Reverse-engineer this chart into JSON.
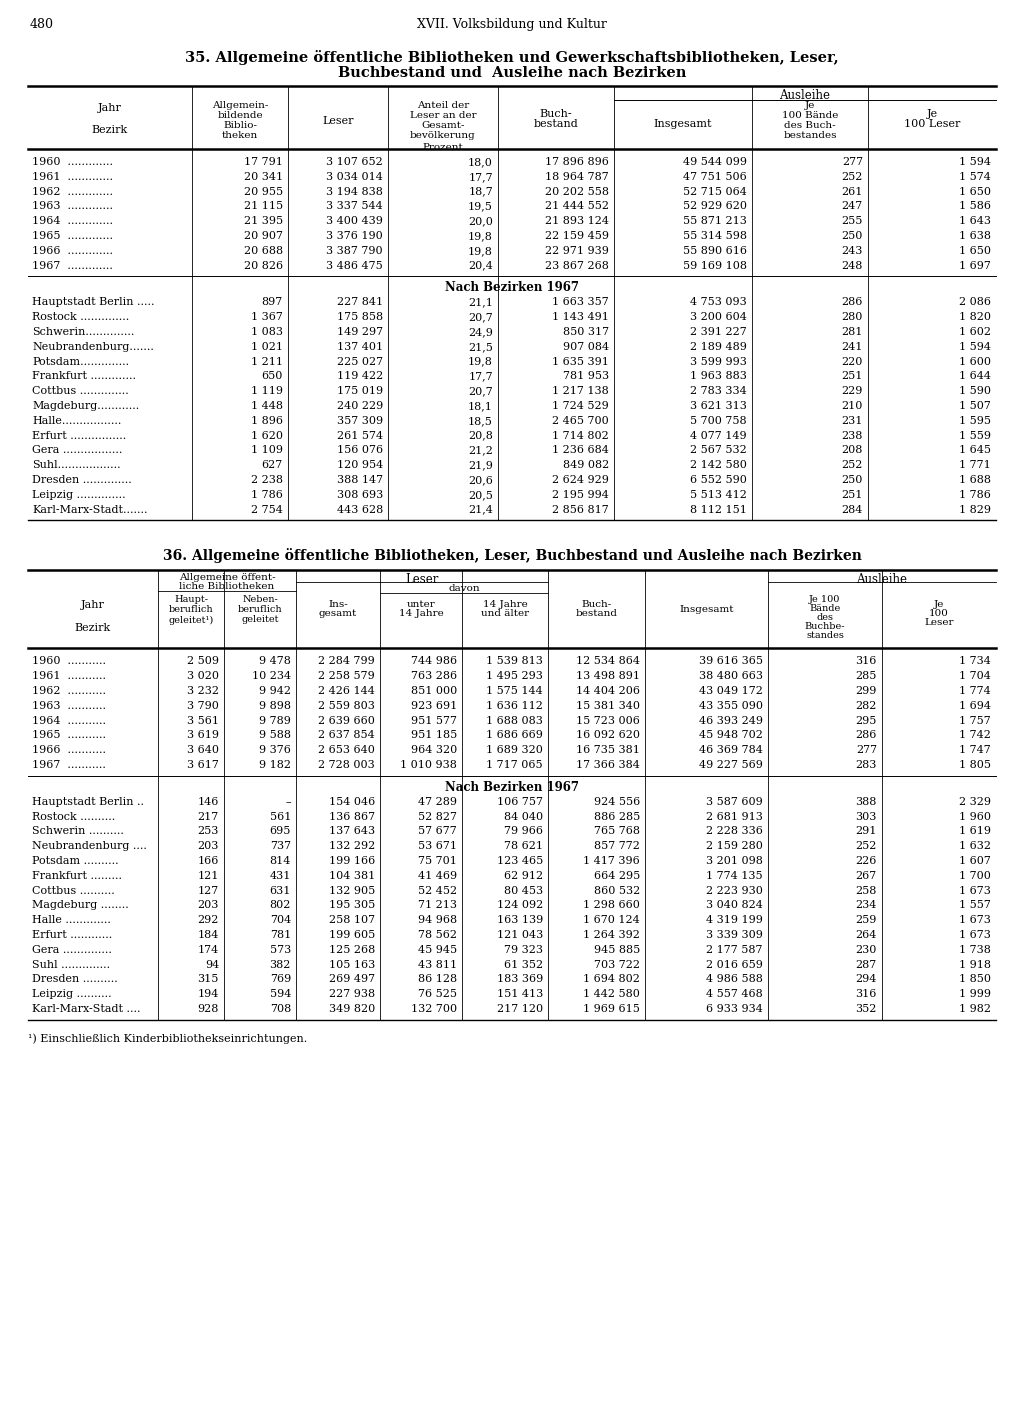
{
  "page_num": "480",
  "header": "XVII. Volksbildung und Kultur",
  "title35_line1": "35. Allgemeine öffentliche Bibliotheken und Gewerkschaftsbibliotheken, Leser,",
  "title35_line2": "Buchbestand und  Ausleihe nach Bezirken",
  "title36": "36. Allgemeine öffentliche Bibliotheken, Leser, Buchbestand und Ausleihe nach Bezirken",
  "footnote": "¹) Einschließlich Kinderbibliothekseinrichtungen.",
  "table35_years": [
    [
      "1960  .............",
      "17 791",
      "3 107 652",
      "18,0",
      "17 896 896",
      "49 544 099",
      "277",
      "1 594"
    ],
    [
      "1961  .............",
      "20 341",
      "3 034 014",
      "17,7",
      "18 964 787",
      "47 751 506",
      "252",
      "1 574"
    ],
    [
      "1962  .............",
      "20 955",
      "3 194 838",
      "18,7",
      "20 202 558",
      "52 715 064",
      "261",
      "1 650"
    ],
    [
      "1963  .............",
      "21 115",
      "3 337 544",
      "19,5",
      "21 444 552",
      "52 929 620",
      "247",
      "1 586"
    ],
    [
      "1964  .............",
      "21 395",
      "3 400 439",
      "20,0",
      "21 893 124",
      "55 871 213",
      "255",
      "1 643"
    ],
    [
      "1965  .............",
      "20 907",
      "3 376 190",
      "19,8",
      "22 159 459",
      "55 314 598",
      "250",
      "1 638"
    ],
    [
      "1966  .............",
      "20 688",
      "3 387 790",
      "19,8",
      "22 971 939",
      "55 890 616",
      "243",
      "1 650"
    ],
    [
      "1967  .............",
      "20 826",
      "3 486 475",
      "20,4",
      "23 867 268",
      "59 169 108",
      "248",
      "1 697"
    ]
  ],
  "table35_bezirke_header": "Nach Bezirken 1967",
  "table35_bezirke": [
    [
      "Hauptstadt Berlin .....",
      "897",
      "227 841",
      "21,1",
      "1 663 357",
      "4 753 093",
      "286",
      "2 086"
    ],
    [
      "Rostock ..............",
      "1 367",
      "175 858",
      "20,7",
      "1 143 491",
      "3 200 604",
      "280",
      "1 820"
    ],
    [
      "Schwerin..............",
      "1 083",
      "149 297",
      "24,9",
      "850 317",
      "2 391 227",
      "281",
      "1 602"
    ],
    [
      "Neubrandenburg.......",
      "1 021",
      "137 401",
      "21,5",
      "907 084",
      "2 189 489",
      "241",
      "1 594"
    ],
    [
      "Potsdam..............",
      "1 211",
      "225 027",
      "19,8",
      "1 635 391",
      "3 599 993",
      "220",
      "1 600"
    ],
    [
      "Frankfurt .............",
      "650",
      "119 422",
      "17,7",
      "781 953",
      "1 963 883",
      "251",
      "1 644"
    ],
    [
      "Cottbus ..............",
      "1 119",
      "175 019",
      "20,7",
      "1 217 138",
      "2 783 334",
      "229",
      "1 590"
    ],
    [
      "Magdeburg............",
      "1 448",
      "240 229",
      "18,1",
      "1 724 529",
      "3 621 313",
      "210",
      "1 507"
    ],
    [
      "Halle.................",
      "1 896",
      "357 309",
      "18,5",
      "2 465 700",
      "5 700 758",
      "231",
      "1 595"
    ],
    [
      "Erfurt ................",
      "1 620",
      "261 574",
      "20,8",
      "1 714 802",
      "4 077 149",
      "238",
      "1 559"
    ],
    [
      "Gera .................",
      "1 109",
      "156 076",
      "21,2",
      "1 236 684",
      "2 567 532",
      "208",
      "1 645"
    ],
    [
      "Suhl..................",
      "627",
      "120 954",
      "21,9",
      "849 082",
      "2 142 580",
      "252",
      "1 771"
    ],
    [
      "Dresden ..............",
      "2 238",
      "388 147",
      "20,6",
      "2 624 929",
      "6 552 590",
      "250",
      "1 688"
    ],
    [
      "Leipzig ..............",
      "1 786",
      "308 693",
      "20,5",
      "2 195 994",
      "5 513 412",
      "251",
      "1 786"
    ],
    [
      "Karl-Marx-Stadt.......",
      "2 754",
      "443 628",
      "21,4",
      "2 856 817",
      "8 112 151",
      "284",
      "1 829"
    ]
  ],
  "table36_years": [
    [
      "1960  ...........",
      "2 509",
      "9 478",
      "2 284 799",
      "744 986",
      "1 539 813",
      "12 534 864",
      "39 616 365",
      "316",
      "1 734"
    ],
    [
      "1961  ...........",
      "3 020",
      "10 234",
      "2 258 579",
      "763 286",
      "1 495 293",
      "13 498 891",
      "38 480 663",
      "285",
      "1 704"
    ],
    [
      "1962  ...........",
      "3 232",
      "9 942",
      "2 426 144",
      "851 000",
      "1 575 144",
      "14 404 206",
      "43 049 172",
      "299",
      "1 774"
    ],
    [
      "1963  ...........",
      "3 790",
      "9 898",
      "2 559 803",
      "923 691",
      "1 636 112",
      "15 381 340",
      "43 355 090",
      "282",
      "1 694"
    ],
    [
      "1964  ...........",
      "3 561",
      "9 789",
      "2 639 660",
      "951 577",
      "1 688 083",
      "15 723 006",
      "46 393 249",
      "295",
      "1 757"
    ],
    [
      "1965  ...........",
      "3 619",
      "9 588",
      "2 637 854",
      "951 185",
      "1 686 669",
      "16 092 620",
      "45 948 702",
      "286",
      "1 742"
    ],
    [
      "1966  ...........",
      "3 640",
      "9 376",
      "2 653 640",
      "964 320",
      "1 689 320",
      "16 735 381",
      "46 369 784",
      "277",
      "1 747"
    ],
    [
      "1967  ...........",
      "3 617",
      "9 182",
      "2 728 003",
      "1 010 938",
      "1 717 065",
      "17 366 384",
      "49 227 569",
      "283",
      "1 805"
    ]
  ],
  "table36_bezirke_header": "Nach Bezirken 1967",
  "table36_bezirke": [
    [
      "Hauptstadt Berlin ..",
      "146",
      "–",
      "154 046",
      "47 289",
      "106 757",
      "924 556",
      "3 587 609",
      "388",
      "2 329"
    ],
    [
      "Rostock ..........",
      "217",
      "561",
      "136 867",
      "52 827",
      "84 040",
      "886 285",
      "2 681 913",
      "303",
      "1 960"
    ],
    [
      "Schwerin ..........",
      "253",
      "695",
      "137 643",
      "57 677",
      "79 966",
      "765 768",
      "2 228 336",
      "291",
      "1 619"
    ],
    [
      "Neubrandenburg ....",
      "203",
      "737",
      "132 292",
      "53 671",
      "78 621",
      "857 772",
      "2 159 280",
      "252",
      "1 632"
    ],
    [
      "Potsdam ..........",
      "166",
      "814",
      "199 166",
      "75 701",
      "123 465",
      "1 417 396",
      "3 201 098",
      "226",
      "1 607"
    ],
    [
      "Frankfurt .........",
      "121",
      "431",
      "104 381",
      "41 469",
      "62 912",
      "664 295",
      "1 774 135",
      "267",
      "1 700"
    ],
    [
      "Cottbus ..........",
      "127",
      "631",
      "132 905",
      "52 452",
      "80 453",
      "860 532",
      "2 223 930",
      "258",
      "1 673"
    ],
    [
      "Magdeburg ........",
      "203",
      "802",
      "195 305",
      "71 213",
      "124 092",
      "1 298 660",
      "3 040 824",
      "234",
      "1 557"
    ],
    [
      "Halle .............",
      "292",
      "704",
      "258 107",
      "94 968",
      "163 139",
      "1 670 124",
      "4 319 199",
      "259",
      "1 673"
    ],
    [
      "Erfurt ............",
      "184",
      "781",
      "199 605",
      "78 562",
      "121 043",
      "1 264 392",
      "3 339 309",
      "264",
      "1 673"
    ],
    [
      "Gera ..............",
      "174",
      "573",
      "125 268",
      "45 945",
      "79 323",
      "945 885",
      "2 177 587",
      "230",
      "1 738"
    ],
    [
      "Suhl ..............",
      "94",
      "382",
      "105 163",
      "43 811",
      "61 352",
      "703 722",
      "2 016 659",
      "287",
      "1 918"
    ],
    [
      "Dresden ..........",
      "315",
      "769",
      "269 497",
      "86 128",
      "183 369",
      "1 694 802",
      "4 986 588",
      "294",
      "1 850"
    ],
    [
      "Leipzig ..........",
      "194",
      "594",
      "227 938",
      "76 525",
      "151 413",
      "1 442 580",
      "4 557 468",
      "316",
      "1 999"
    ],
    [
      "Karl-Marx-Stadt ....",
      "928",
      "708",
      "349 820",
      "132 700",
      "217 120",
      "1 969 615",
      "6 933 934",
      "352",
      "1 982"
    ]
  ]
}
